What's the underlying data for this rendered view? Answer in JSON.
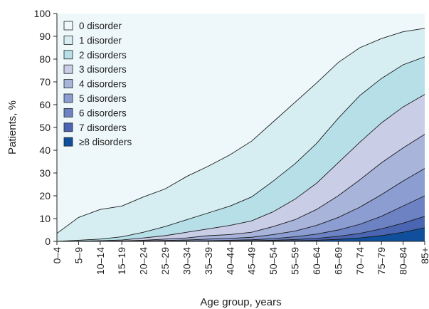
{
  "chart_data": {
    "type": "area",
    "stacked": true,
    "xlabel": "Age group, years",
    "ylabel": "Patients, %",
    "ylim": [
      0,
      100
    ],
    "yticks": [
      0,
      10,
      20,
      30,
      40,
      50,
      60,
      70,
      80,
      90,
      100
    ],
    "legend_position": "top-left",
    "grid": false,
    "categories": [
      "0–4",
      "5–9",
      "10–14",
      "15–19",
      "20–24",
      "25–29",
      "30–34",
      "35–39",
      "40–44",
      "45–49",
      "50–54",
      "55–59",
      "60–64",
      "65–69",
      "70–74",
      "75–79",
      "80–84",
      "85+"
    ],
    "cumulative_boundaries": [
      {
        "above": "1 disorder",
        "values": [
          3.5,
          10.5,
          14.0,
          15.5,
          19.5,
          23.0,
          28.5,
          33.0,
          38.0,
          44.0,
          52.5,
          61.0,
          69.5,
          78.5,
          85.0,
          89.0,
          92.0,
          93.5
        ]
      },
      {
        "above": "2 disorders",
        "values": [
          0.0,
          0.5,
          1.0,
          2.0,
          4.0,
          6.5,
          9.5,
          12.5,
          15.5,
          19.5,
          26.5,
          34.0,
          43.0,
          54.0,
          64.0,
          71.5,
          77.5,
          81.0
        ]
      },
      {
        "above": "3 disorders",
        "values": [
          0.0,
          0.1,
          0.3,
          0.6,
          1.5,
          2.5,
          4.0,
          5.5,
          7.0,
          9.0,
          13.0,
          18.5,
          25.5,
          34.5,
          43.5,
          52.0,
          59.0,
          64.5
        ]
      },
      {
        "above": "4 disorders",
        "values": [
          0.0,
          0.0,
          0.1,
          0.2,
          0.5,
          1.0,
          1.5,
          2.5,
          3.0,
          4.0,
          6.5,
          9.5,
          14.0,
          20.0,
          27.0,
          34.5,
          41.0,
          47.0
        ]
      },
      {
        "above": "5 disorders",
        "values": [
          0.0,
          0.0,
          0.0,
          0.1,
          0.2,
          0.4,
          0.6,
          1.0,
          1.3,
          1.8,
          3.0,
          4.5,
          7.0,
          10.5,
          15.0,
          20.5,
          26.5,
          32.0
        ]
      },
      {
        "above": "6 disorders",
        "values": [
          0.0,
          0.0,
          0.0,
          0.0,
          0.1,
          0.1,
          0.2,
          0.3,
          0.5,
          0.7,
          1.2,
          2.0,
          3.2,
          5.0,
          7.5,
          11.0,
          15.5,
          20.0
        ]
      },
      {
        "above": "7 disorders",
        "values": [
          0.0,
          0.0,
          0.0,
          0.0,
          0.0,
          0.0,
          0.1,
          0.1,
          0.2,
          0.3,
          0.5,
          0.8,
          1.3,
          2.2,
          3.5,
          5.5,
          8.0,
          11.0
        ]
      },
      {
        "above": "≥8 disorders",
        "values": [
          0.0,
          0.0,
          0.0,
          0.0,
          0.0,
          0.0,
          0.0,
          0.0,
          0.1,
          0.1,
          0.2,
          0.3,
          0.5,
          0.9,
          1.5,
          2.5,
          4.0,
          6.0
        ]
      }
    ],
    "series": [
      {
        "name": "0 disorder",
        "color": "#eef8fa"
      },
      {
        "name": "1 disorder",
        "color": "#d6eef2"
      },
      {
        "name": "2 disorders",
        "color": "#b6dfe8"
      },
      {
        "name": "3 disorders",
        "color": "#c9cde6"
      },
      {
        "name": "4 disorders",
        "color": "#a9b4db"
      },
      {
        "name": "5 disorders",
        "color": "#8b9dd1"
      },
      {
        "name": "6 disorders",
        "color": "#6c82c3"
      },
      {
        "name": "7 disorders",
        "color": "#4a66b3"
      },
      {
        "name": "≥8 disorders",
        "color": "#0f4f9c"
      }
    ]
  }
}
